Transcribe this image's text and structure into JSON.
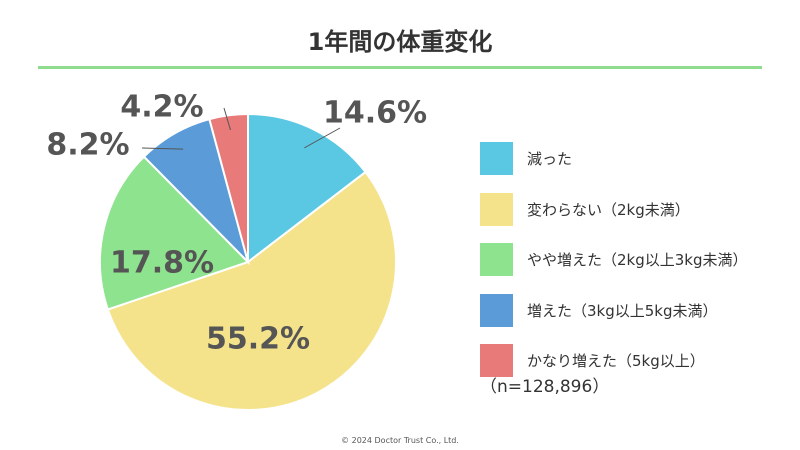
{
  "title": "1年間の体重変化",
  "colors": {
    "title_rule": "#8fdc8f",
    "label_text": "#555555"
  },
  "chart_data": {
    "type": "pie",
    "title": "1年間の体重変化",
    "start": "12 o'clock",
    "direction": "clockwise",
    "slices": [
      {
        "label": "減った",
        "value": 14.6,
        "display": "14.6%",
        "color": "#5bc8e3"
      },
      {
        "label": "変わらない（2kg未満）",
        "value": 55.2,
        "display": "55.2%",
        "color": "#f5e38c"
      },
      {
        "label": "やや増えた（2kg以上3kg未満）",
        "value": 17.8,
        "display": "17.8%",
        "color": "#8ee38e"
      },
      {
        "label": "増えた（3kg以上5kg未満）",
        "value": 8.2,
        "display": "8.2%",
        "color": "#5b9bd8"
      },
      {
        "label": "かなり増えた（5kg以上）",
        "value": 4.2,
        "display": "4.2%",
        "color": "#e87a7a"
      }
    ],
    "legend_position": "right",
    "note": "（n=128,896）"
  },
  "footer": "© 2024 Doctor Trust Co., Ltd."
}
